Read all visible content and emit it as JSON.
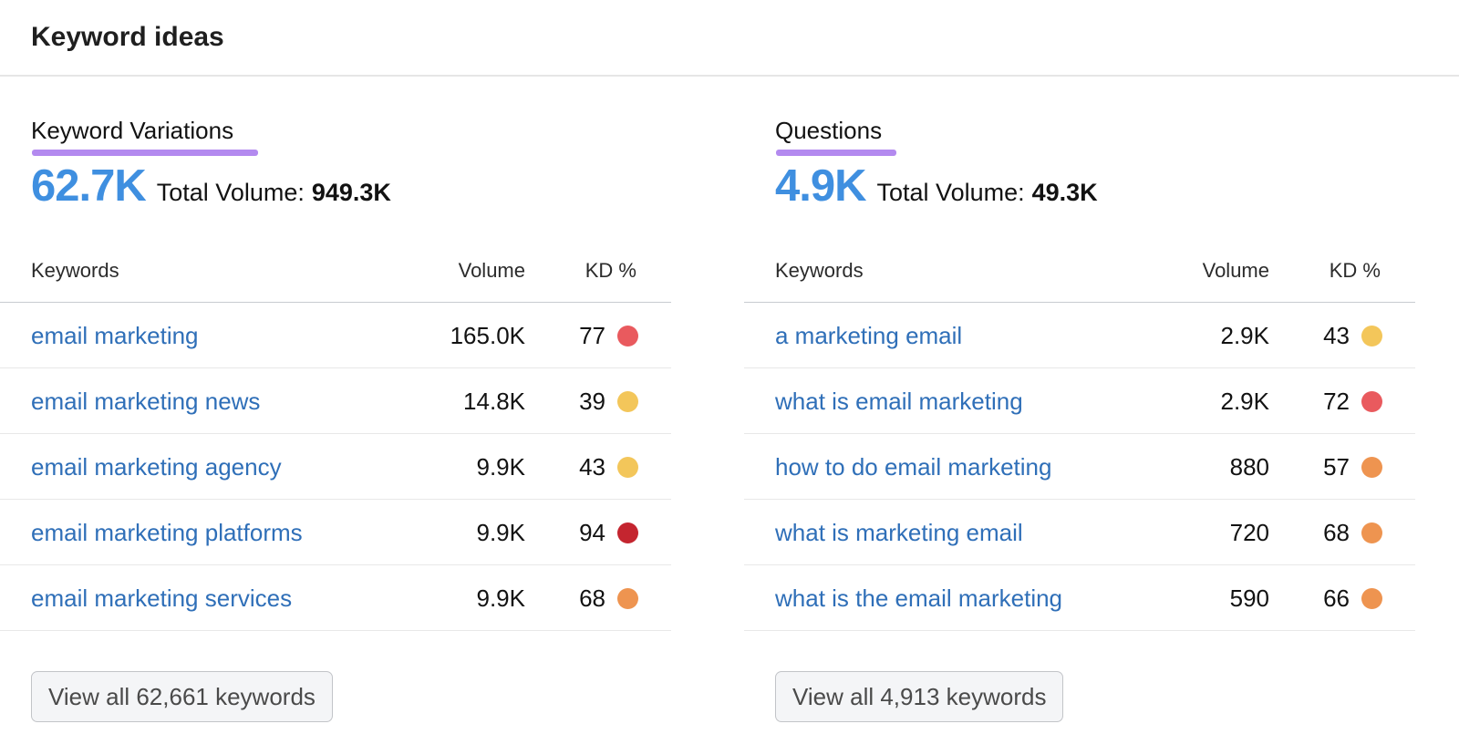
{
  "header": {
    "title": "Keyword ideas"
  },
  "colors": {
    "accent_blue": "#3f8fe0",
    "link_blue": "#2f6fb8",
    "underline_purple": "#b38aef",
    "kd_red": "#e95a5e",
    "kd_dark_red": "#c4252f",
    "kd_orange": "#ee9450",
    "kd_yellow": "#f3c65a"
  },
  "panels": [
    {
      "title": "Keyword Variations",
      "count": "62.7K",
      "total_label": "Total Volume:",
      "total_value": "949.3K",
      "columns": {
        "keyword": "Keywords",
        "volume": "Volume",
        "kd": "KD %"
      },
      "rows": [
        {
          "keyword": "email marketing",
          "volume": "165.0K",
          "kd": "77",
          "kd_color": "#e95a5e"
        },
        {
          "keyword": "email marketing news",
          "volume": "14.8K",
          "kd": "39",
          "kd_color": "#f3c65a"
        },
        {
          "keyword": "email marketing agency",
          "volume": "9.9K",
          "kd": "43",
          "kd_color": "#f3c65a"
        },
        {
          "keyword": "email marketing platforms",
          "volume": "9.9K",
          "kd": "94",
          "kd_color": "#c4252f"
        },
        {
          "keyword": "email marketing services",
          "volume": "9.9K",
          "kd": "68",
          "kd_color": "#ee9450"
        }
      ],
      "view_all_label": "View all 62,661 keywords"
    },
    {
      "title": "Questions",
      "count": "4.9K",
      "total_label": "Total Volume:",
      "total_value": "49.3K",
      "columns": {
        "keyword": "Keywords",
        "volume": "Volume",
        "kd": "KD %"
      },
      "rows": [
        {
          "keyword": "a marketing email",
          "volume": "2.9K",
          "kd": "43",
          "kd_color": "#f3c65a"
        },
        {
          "keyword": "what is email marketing",
          "volume": "2.9K",
          "kd": "72",
          "kd_color": "#e95a5e"
        },
        {
          "keyword": "how to do email marketing",
          "volume": "880",
          "kd": "57",
          "kd_color": "#ee9450"
        },
        {
          "keyword": "what is marketing email",
          "volume": "720",
          "kd": "68",
          "kd_color": "#ee9450"
        },
        {
          "keyword": "what is the email marketing",
          "volume": "590",
          "kd": "66",
          "kd_color": "#ee9450"
        }
      ],
      "view_all_label": "View all 4,913 keywords"
    }
  ]
}
